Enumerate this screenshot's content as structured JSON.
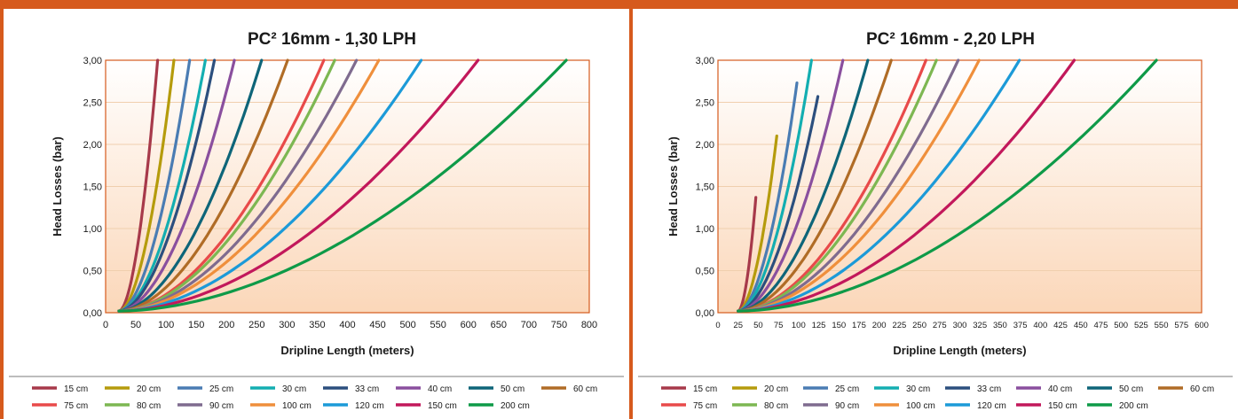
{
  "colors": {
    "accent": "#d65a1d",
    "series": {
      "15 cm": "#a7394a",
      "20 cm": "#b59b0c",
      "25 cm": "#4a7cb3",
      "30 cm": "#13aeb1",
      "33 cm": "#2c4f7e",
      "40 cm": "#8a4f9e",
      "50 cm": "#0e6579",
      "60 cm": "#b06c26",
      "75 cm": "#e84a4a",
      "80 cm": "#7db752",
      "90 cm": "#7f6b8f",
      "100 cm": "#ef8f3c",
      "120 cm": "#1c9ad8",
      "150 cm": "#c2185b",
      "200 cm": "#0e9a48"
    }
  },
  "chart_data": [
    {
      "type": "line",
      "title": "PC² 16mm - 1,30 LPH",
      "xlabel": "Dripline Length (meters)",
      "ylabel": "Head Losses (bar)",
      "xlim": [
        0,
        800
      ],
      "ylim": [
        0,
        3
      ],
      "xticks": [
        0,
        50,
        100,
        150,
        200,
        250,
        300,
        350,
        400,
        450,
        500,
        550,
        600,
        650,
        700,
        750,
        800
      ],
      "xtick_labels": [
        "0",
        "50",
        "100",
        "150",
        "200",
        "250",
        "300",
        "350",
        "400",
        "450",
        "500",
        "550",
        "600",
        "650",
        "700",
        "750",
        "800"
      ],
      "yticks": [
        0,
        0.5,
        1,
        1.5,
        2,
        2.5,
        3
      ],
      "ytick_labels": [
        "0,00",
        "0,50",
        "1,00",
        "1,50",
        "2,00",
        "2,50",
        "3,00"
      ],
      "grid": "horizontal",
      "legend": "bottom",
      "series": [
        {
          "name": "15 cm",
          "x_start": 22,
          "x_end": 86,
          "y_end": 3.0
        },
        {
          "name": "20 cm",
          "x_start": 22,
          "x_end": 113,
          "y_end": 3.0
        },
        {
          "name": "25 cm",
          "x_start": 22,
          "x_end": 139,
          "y_end": 3.0
        },
        {
          "name": "30 cm",
          "x_start": 22,
          "x_end": 165,
          "y_end": 3.0
        },
        {
          "name": "33 cm",
          "x_start": 22,
          "x_end": 180,
          "y_end": 3.0
        },
        {
          "name": "40 cm",
          "x_start": 22,
          "x_end": 213,
          "y_end": 3.0
        },
        {
          "name": "50 cm",
          "x_start": 22,
          "x_end": 258,
          "y_end": 3.0
        },
        {
          "name": "60 cm",
          "x_start": 22,
          "x_end": 301,
          "y_end": 3.0
        },
        {
          "name": "75 cm",
          "x_start": 22,
          "x_end": 361,
          "y_end": 3.0
        },
        {
          "name": "80 cm",
          "x_start": 22,
          "x_end": 379,
          "y_end": 3.0
        },
        {
          "name": "90 cm",
          "x_start": 22,
          "x_end": 415,
          "y_end": 3.0
        },
        {
          "name": "100 cm",
          "x_start": 22,
          "x_end": 452,
          "y_end": 3.0
        },
        {
          "name": "120 cm",
          "x_start": 22,
          "x_end": 522,
          "y_end": 3.0
        },
        {
          "name": "150 cm",
          "x_start": 22,
          "x_end": 616,
          "y_end": 3.0
        },
        {
          "name": "200 cm",
          "x_start": 22,
          "x_end": 762,
          "y_end": 3.0
        }
      ]
    },
    {
      "type": "line",
      "title": "PC² 16mm - 2,20 LPH",
      "xlabel": "Dripline Length (meters)",
      "ylabel": "Head Losses (bar)",
      "xlim": [
        0,
        600
      ],
      "ylim": [
        0,
        3
      ],
      "xticks": [
        0,
        25,
        50,
        75,
        100,
        125,
        150,
        175,
        200,
        225,
        250,
        275,
        300,
        325,
        350,
        375,
        400,
        425,
        450,
        475,
        500,
        525,
        550,
        575,
        600
      ],
      "xtick_labels": [
        "0",
        "25",
        "50",
        "75",
        "100",
        "125",
        "150",
        "175",
        "200",
        "225",
        "250",
        "275",
        "300",
        "325",
        "350",
        "375",
        "400",
        "425",
        "450",
        "475",
        "500",
        "525",
        "550",
        "575",
        "600"
      ],
      "yticks": [
        0,
        0.5,
        1,
        1.5,
        2,
        2.5,
        3
      ],
      "ytick_labels": [
        "0,00",
        "0,50",
        "1,00",
        "1,50",
        "2,00",
        "2,50",
        "3,00"
      ],
      "grid": "horizontal",
      "legend": "bottom",
      "series": [
        {
          "name": "15 cm",
          "x_start": 25,
          "x_end": 47,
          "y_end": 1.37
        },
        {
          "name": "20 cm",
          "x_start": 25,
          "x_end": 73,
          "y_end": 2.1
        },
        {
          "name": "25 cm",
          "x_start": 25,
          "x_end": 98,
          "y_end": 2.73
        },
        {
          "name": "30 cm",
          "x_start": 25,
          "x_end": 116,
          "y_end": 3.0
        },
        {
          "name": "33 cm",
          "x_start": 25,
          "x_end": 124,
          "y_end": 2.57
        },
        {
          "name": "40 cm",
          "x_start": 25,
          "x_end": 155,
          "y_end": 3.0
        },
        {
          "name": "50 cm",
          "x_start": 25,
          "x_end": 186,
          "y_end": 3.0
        },
        {
          "name": "60 cm",
          "x_start": 25,
          "x_end": 215,
          "y_end": 3.0
        },
        {
          "name": "75 cm",
          "x_start": 25,
          "x_end": 258,
          "y_end": 3.0
        },
        {
          "name": "80 cm",
          "x_start": 25,
          "x_end": 271,
          "y_end": 3.0
        },
        {
          "name": "90 cm",
          "x_start": 25,
          "x_end": 298,
          "y_end": 3.0
        },
        {
          "name": "100 cm",
          "x_start": 25,
          "x_end": 324,
          "y_end": 3.0
        },
        {
          "name": "120 cm",
          "x_start": 25,
          "x_end": 374,
          "y_end": 3.0
        },
        {
          "name": "150 cm",
          "x_start": 25,
          "x_end": 442,
          "y_end": 3.0
        },
        {
          "name": "200 cm",
          "x_start": 25,
          "x_end": 544,
          "y_end": 3.0
        }
      ]
    }
  ],
  "legend_items": [
    "15 cm",
    "20 cm",
    "25 cm",
    "30 cm",
    "33 cm",
    "40 cm",
    "50 cm",
    "60 cm",
    "75 cm",
    "80 cm",
    "90 cm",
    "100 cm",
    "120 cm",
    "150 cm",
    "200 cm"
  ]
}
